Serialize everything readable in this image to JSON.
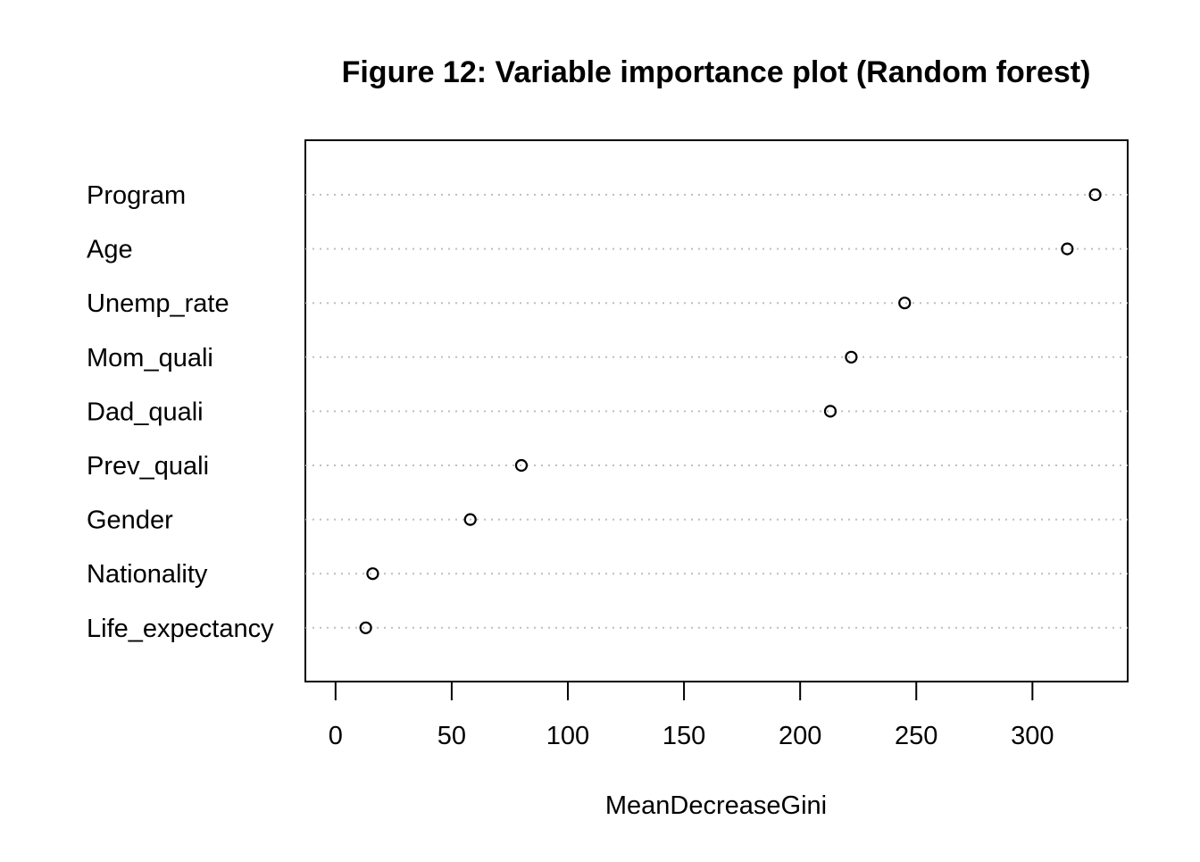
{
  "chart_data": {
    "type": "scatter",
    "title": "Figure 12: Variable importance plot (Random forest)",
    "xlabel": "MeanDecreaseGini",
    "ylabel": "",
    "categories": [
      "Program",
      "Age",
      "Unemp_rate",
      "Mom_quali",
      "Dad_quali",
      "Prev_quali",
      "Gender",
      "Nationality",
      "Life_expectancy"
    ],
    "values": [
      327,
      315,
      245,
      222,
      213,
      80,
      58,
      16,
      13
    ],
    "xlim": [
      -13,
      341
    ],
    "xticks": [
      0,
      50,
      100,
      150,
      200,
      250,
      300
    ],
    "xtick_labels": [
      "0",
      "50",
      "100",
      "150",
      "200",
      "250",
      "300"
    ],
    "grid": "dotted horizontal lines per variable",
    "marker": "open circle",
    "colors": {
      "point_stroke": "#000000",
      "grid_line": "#bebebe",
      "axis": "#000000",
      "background": "#ffffff"
    }
  }
}
